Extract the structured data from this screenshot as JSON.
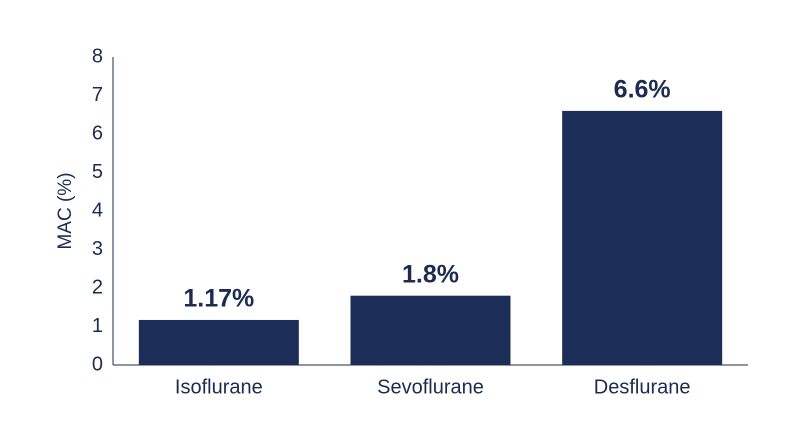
{
  "chart_data": {
    "type": "bar",
    "y_label": "MAC (%)",
    "categories": [
      "Isoflurane",
      "Sevoflurane",
      "Desflurane"
    ],
    "values": [
      1.17,
      1.8,
      6.6
    ],
    "value_labels": [
      "1.17%",
      "1.8%",
      "6.6%"
    ],
    "color": "#1c2e58",
    "ylim": [
      0,
      8
    ],
    "yticks": [
      0,
      1,
      2,
      3,
      4,
      5,
      6,
      7,
      8
    ],
    "grid": false
  }
}
